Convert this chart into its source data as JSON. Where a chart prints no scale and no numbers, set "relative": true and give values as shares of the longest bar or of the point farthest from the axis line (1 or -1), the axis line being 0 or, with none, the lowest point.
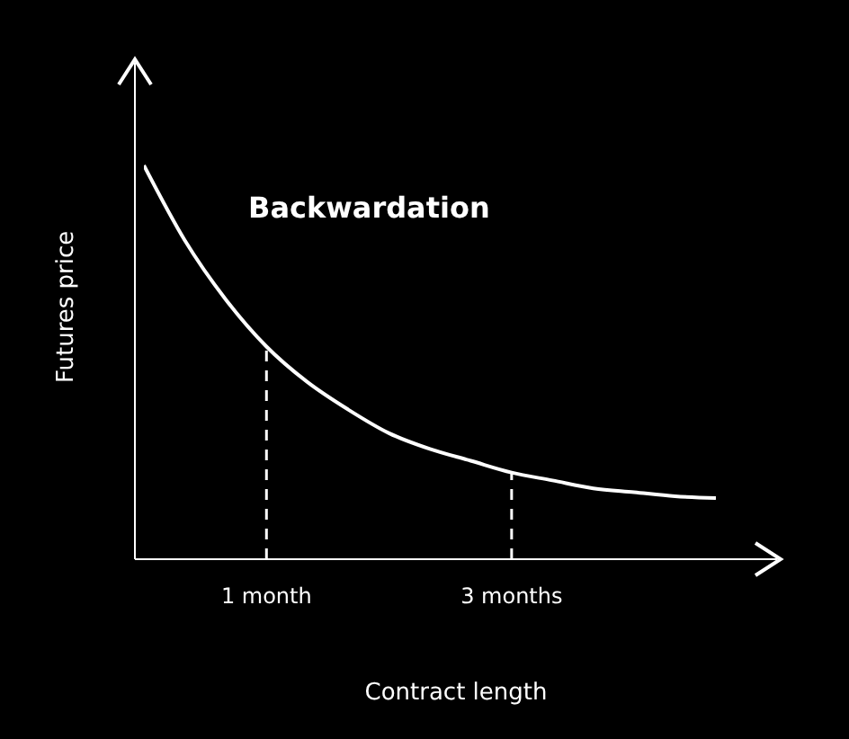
{
  "chart_data": {
    "type": "line",
    "relative": true,
    "xlabel": "Contract length",
    "ylabel": "Futures price",
    "annotations": [
      "Backwardation"
    ],
    "categories": [
      null,
      null,
      null,
      "1 month",
      null,
      null,
      null,
      null,
      null,
      "3 months",
      null,
      null,
      null,
      null,
      null
    ],
    "series": [
      {
        "color": "#ffffff",
        "values": [
          1.0,
          0.81,
          0.66,
          0.54,
          0.45,
          0.38,
          0.32,
          0.28,
          0.25,
          0.22,
          0.2,
          0.18,
          0.17,
          0.16,
          0.155
        ]
      }
    ],
    "ref_lines": [
      {
        "axis": "x",
        "value": "1 month",
        "line_style": "dashed",
        "color": "#ffffff"
      },
      {
        "axis": "x",
        "value": "3 months",
        "line_style": "dashed",
        "color": "#ffffff"
      }
    ],
    "grid": false,
    "legend": false,
    "marker": "none",
    "line_style": "solid"
  }
}
